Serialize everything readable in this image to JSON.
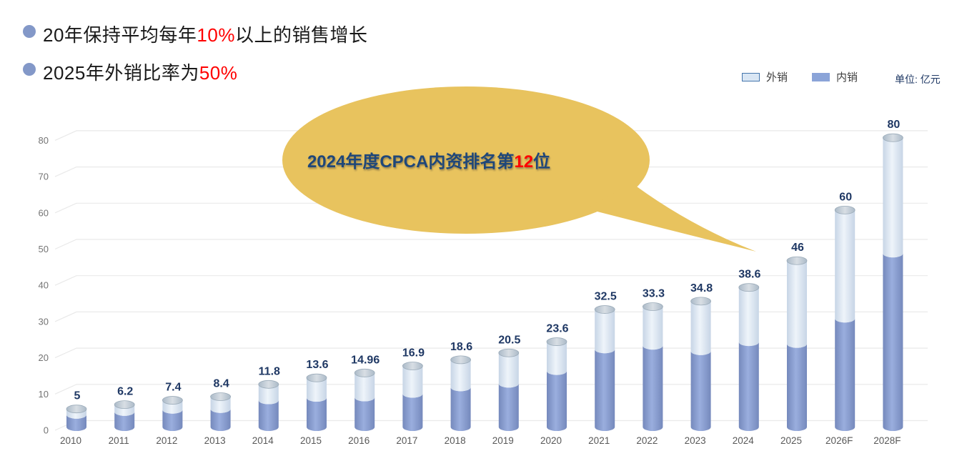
{
  "slide": {
    "bullets": [
      {
        "prefix": "20年保持平均每年",
        "highlight": "10%",
        "suffix": "以上的销售增长"
      },
      {
        "prefix": "2025年外销比率为",
        "highlight": "50%",
        "suffix": ""
      }
    ],
    "callout": {
      "prefix": "2024年度CPCA内资排名第",
      "highlight": "12",
      "suffix": "位"
    },
    "unit_label": "单位: 亿元"
  },
  "colors": {
    "bullet_dot": "#8398c8",
    "highlight_red": "#ff0000",
    "value_label": "#1f3864",
    "axis_text": "#595959",
    "ytick_text": "#737373",
    "grid_line": "#e9e9e9",
    "bubble_fill": "#e8c35e",
    "callout_text": "#1f4779",
    "domestic_edge": "#7589bc",
    "domestic_mid": "#9aaede",
    "export_edge": "#c7d5e6",
    "export_mid": "#eef4fa",
    "cap_edge": "#abbac8",
    "cap_mid": "#d8dee4",
    "cap_stroke": "#9aaab8",
    "legend_export_fill": "#d9e6f4",
    "legend_export_border": "#4576ad",
    "legend_domestic_fill": "#8ba4d8",
    "legend_text": "#3f3f3f"
  },
  "chart_data": {
    "type": "bar",
    "stacked": true,
    "bar_style": "3d-cylinder",
    "title": "",
    "unit": "亿元",
    "categories": [
      "2010",
      "2011",
      "2012",
      "2013",
      "2014",
      "2015",
      "2016",
      "2017",
      "2018",
      "2019",
      "2020",
      "2021",
      "2022",
      "2023",
      "2024",
      "2025",
      "2026F",
      "2028F"
    ],
    "series": [
      {
        "name": "内销",
        "color": "#8ba4d8",
        "note": "segment values estimated from pixels (not labeled in chart)",
        "values": [
          3.4,
          4.2,
          4.8,
          5,
          7.4,
          8.1,
          8.2,
          9.2,
          11,
          12,
          15.5,
          21.5,
          22.5,
          21,
          23.5,
          23,
          30,
          48
        ]
      },
      {
        "name": "外销",
        "color": "#d9e6f4",
        "note": "segment values estimated from pixels (not labeled in chart)",
        "values": [
          1.6,
          2,
          2.6,
          3.4,
          4.4,
          5.5,
          6.76,
          7.7,
          7.6,
          8.5,
          8.1,
          11,
          10.8,
          13.8,
          15.1,
          23,
          30,
          32
        ]
      }
    ],
    "totals": [
      5,
      6.2,
      7.4,
      8.4,
      11.8,
      13.6,
      14.96,
      16.9,
      18.6,
      20.5,
      23.6,
      32.5,
      33.3,
      34.8,
      38.6,
      46,
      60,
      80
    ],
    "total_labels": [
      "5",
      "6.2",
      "7.4",
      "8.4",
      "11.8",
      "13.6",
      "14.96",
      "16.9",
      "18.6",
      "20.5",
      "23.6",
      "32.5",
      "33.3",
      "34.8",
      "38.6",
      "46",
      "60",
      "80"
    ],
    "xlabel": "",
    "ylabel": "",
    "ylim": [
      0,
      80
    ],
    "yticks": [
      0,
      10,
      20,
      30,
      40,
      50,
      60,
      70,
      80
    ],
    "grid": true,
    "legend_position": "top-right"
  }
}
